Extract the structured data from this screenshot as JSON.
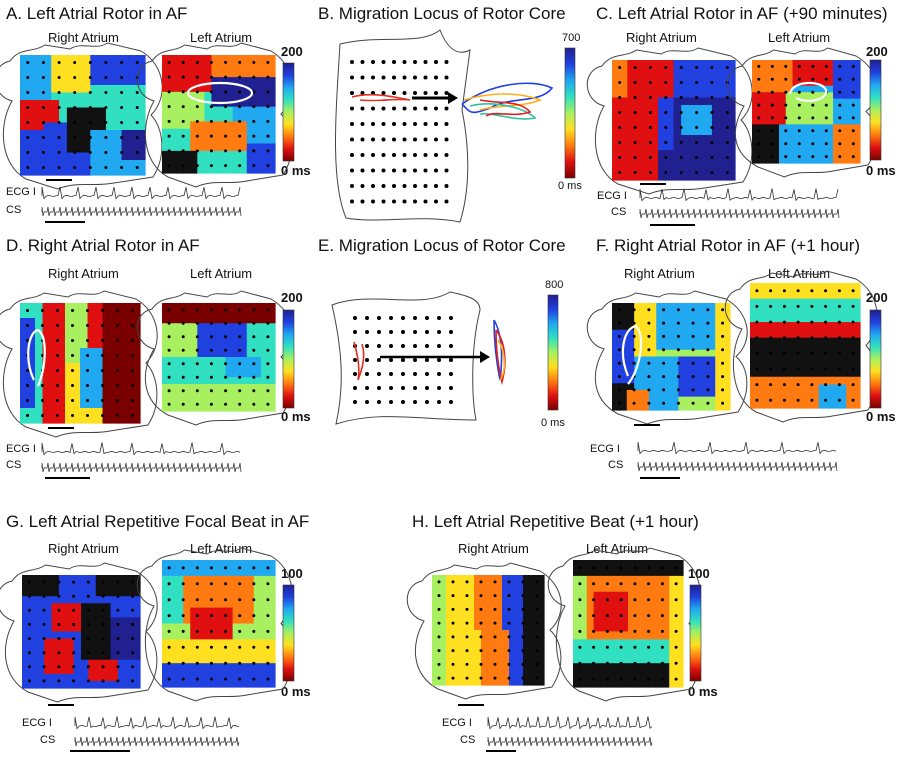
{
  "panels": {
    "A": {
      "title": "A. Left Atrial Rotor in AF",
      "label_ra": "Right Atrium",
      "label_la": "Left Atrium",
      "cb_max": "200",
      "cb_min": "0 ms",
      "ecg": "ECG I",
      "cs": "CS"
    },
    "B": {
      "title": "B. Migration Locus of Rotor Core",
      "cb_max": "700",
      "cb_min": "0 ms"
    },
    "C": {
      "title": "C. Left Atrial Rotor in AF (+90 minutes)",
      "label_ra": "Right Atrium",
      "label_la": "Left Atrium",
      "cb_max": "200",
      "cb_min": "0 ms",
      "ecg": "ECG I",
      "cs": "CS"
    },
    "D": {
      "title": "D. Right Atrial Rotor in AF",
      "label_ra": "Right Atrium",
      "label_la": "Left Atrium",
      "cb_max": "200",
      "cb_min": "0 ms",
      "ecg": "ECG I",
      "cs": "CS"
    },
    "E": {
      "title": "E. Migration Locus of Rotor Core",
      "cb_max": "800",
      "cb_min": "0 ms"
    },
    "F": {
      "title": "F. Right Atrial Rotor in AF (+1 hour)",
      "label_ra": "Right Atrium",
      "label_la": "Left Atrium",
      "cb_max": "200",
      "cb_min": "0 ms",
      "ecg": "ECG I",
      "cs": "CS"
    },
    "G": {
      "title": "G. Left Atrial Repetitive Focal Beat in AF",
      "label_ra": "Right Atrium",
      "label_la": "Left Atrium",
      "cb_max": "100",
      "cb_min": "0 ms",
      "ecg": "ECG I",
      "cs": "CS"
    },
    "H": {
      "title": "H. Left Atrial Repetitive Beat (+1 hour)",
      "label_ra": "Right Atrium",
      "label_la": "Left Atrium",
      "cb_max": "100",
      "cb_min": "0 ms",
      "ecg": "ECG I",
      "cs": "CS"
    }
  },
  "colormap": [
    "#7a0000",
    "#e01010",
    "#ff7a10",
    "#ffe020",
    "#a8f060",
    "#30e0c0",
    "#20a8f0",
    "#2040e0",
    "#202090"
  ]
}
